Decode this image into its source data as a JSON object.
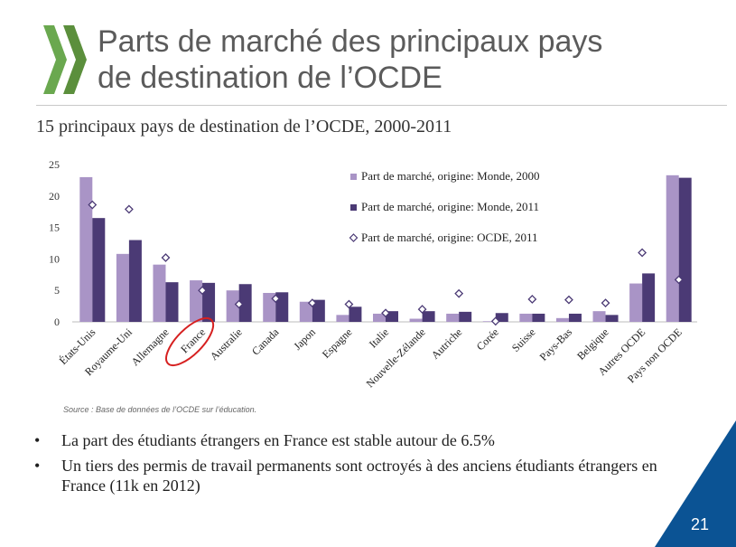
{
  "slide": {
    "title_line1": "Parts de marché des principaux pays",
    "title_line2": "de destination de l’OCDE",
    "page_number": "21",
    "accent_color": "#0b5394"
  },
  "chart_data": {
    "type": "bar",
    "title": "15 principaux pays de destination de l’OCDE, 2000-2011",
    "ylim": [
      0,
      25
    ],
    "yticks": [
      0,
      5,
      10,
      15,
      20,
      25
    ],
    "categories": [
      "États-Unis",
      "Royaume-Uni",
      "Allemagne",
      "France",
      "Australie",
      "Canada",
      "Japon",
      "Espagne",
      "Italie",
      "Nouvelle-Zélande",
      "Autriche",
      "Corée",
      "Suisse",
      "Pays-Bas",
      "Belgique",
      "Autres OCDE",
      "Pays non OCDE"
    ],
    "highlight_category": "France",
    "series": [
      {
        "name": "Part de marché, origine: Monde, 2000",
        "kind": "bar",
        "color": "#a994c6",
        "values": [
          23.0,
          10.8,
          9.1,
          6.6,
          5.0,
          4.6,
          3.2,
          1.1,
          1.3,
          0.5,
          1.3,
          0.1,
          1.3,
          0.6,
          1.7,
          6.1,
          23.3
        ]
      },
      {
        "name": "Part de marché, origine: Monde, 2011",
        "kind": "bar",
        "color": "#4b3a75",
        "values": [
          16.5,
          13.0,
          6.3,
          6.2,
          6.0,
          4.7,
          3.5,
          2.4,
          1.7,
          1.7,
          1.6,
          1.4,
          1.3,
          1.3,
          1.1,
          7.7,
          22.9
        ]
      },
      {
        "name": "Part de marché, origine: OCDE, 2011",
        "kind": "marker",
        "color": "#4b3a75",
        "values": [
          18.6,
          17.9,
          10.2,
          5.0,
          2.8,
          3.7,
          3.0,
          2.8,
          1.4,
          2.0,
          4.5,
          0.1,
          3.6,
          3.5,
          3.0,
          11.0,
          6.7
        ]
      }
    ],
    "legend_position": "top-right",
    "grid": false,
    "source": "Source :  Base de données de l’OCDE sur l’éducation."
  },
  "bullets": [
    "La part des étudiants étrangers en France est stable autour de 6.5%",
    "Un tiers des permis de travail permanents sont octroyés à des anciens étudiants étrangers en France (11k en 2012)"
  ],
  "bullet_symbol": "•"
}
